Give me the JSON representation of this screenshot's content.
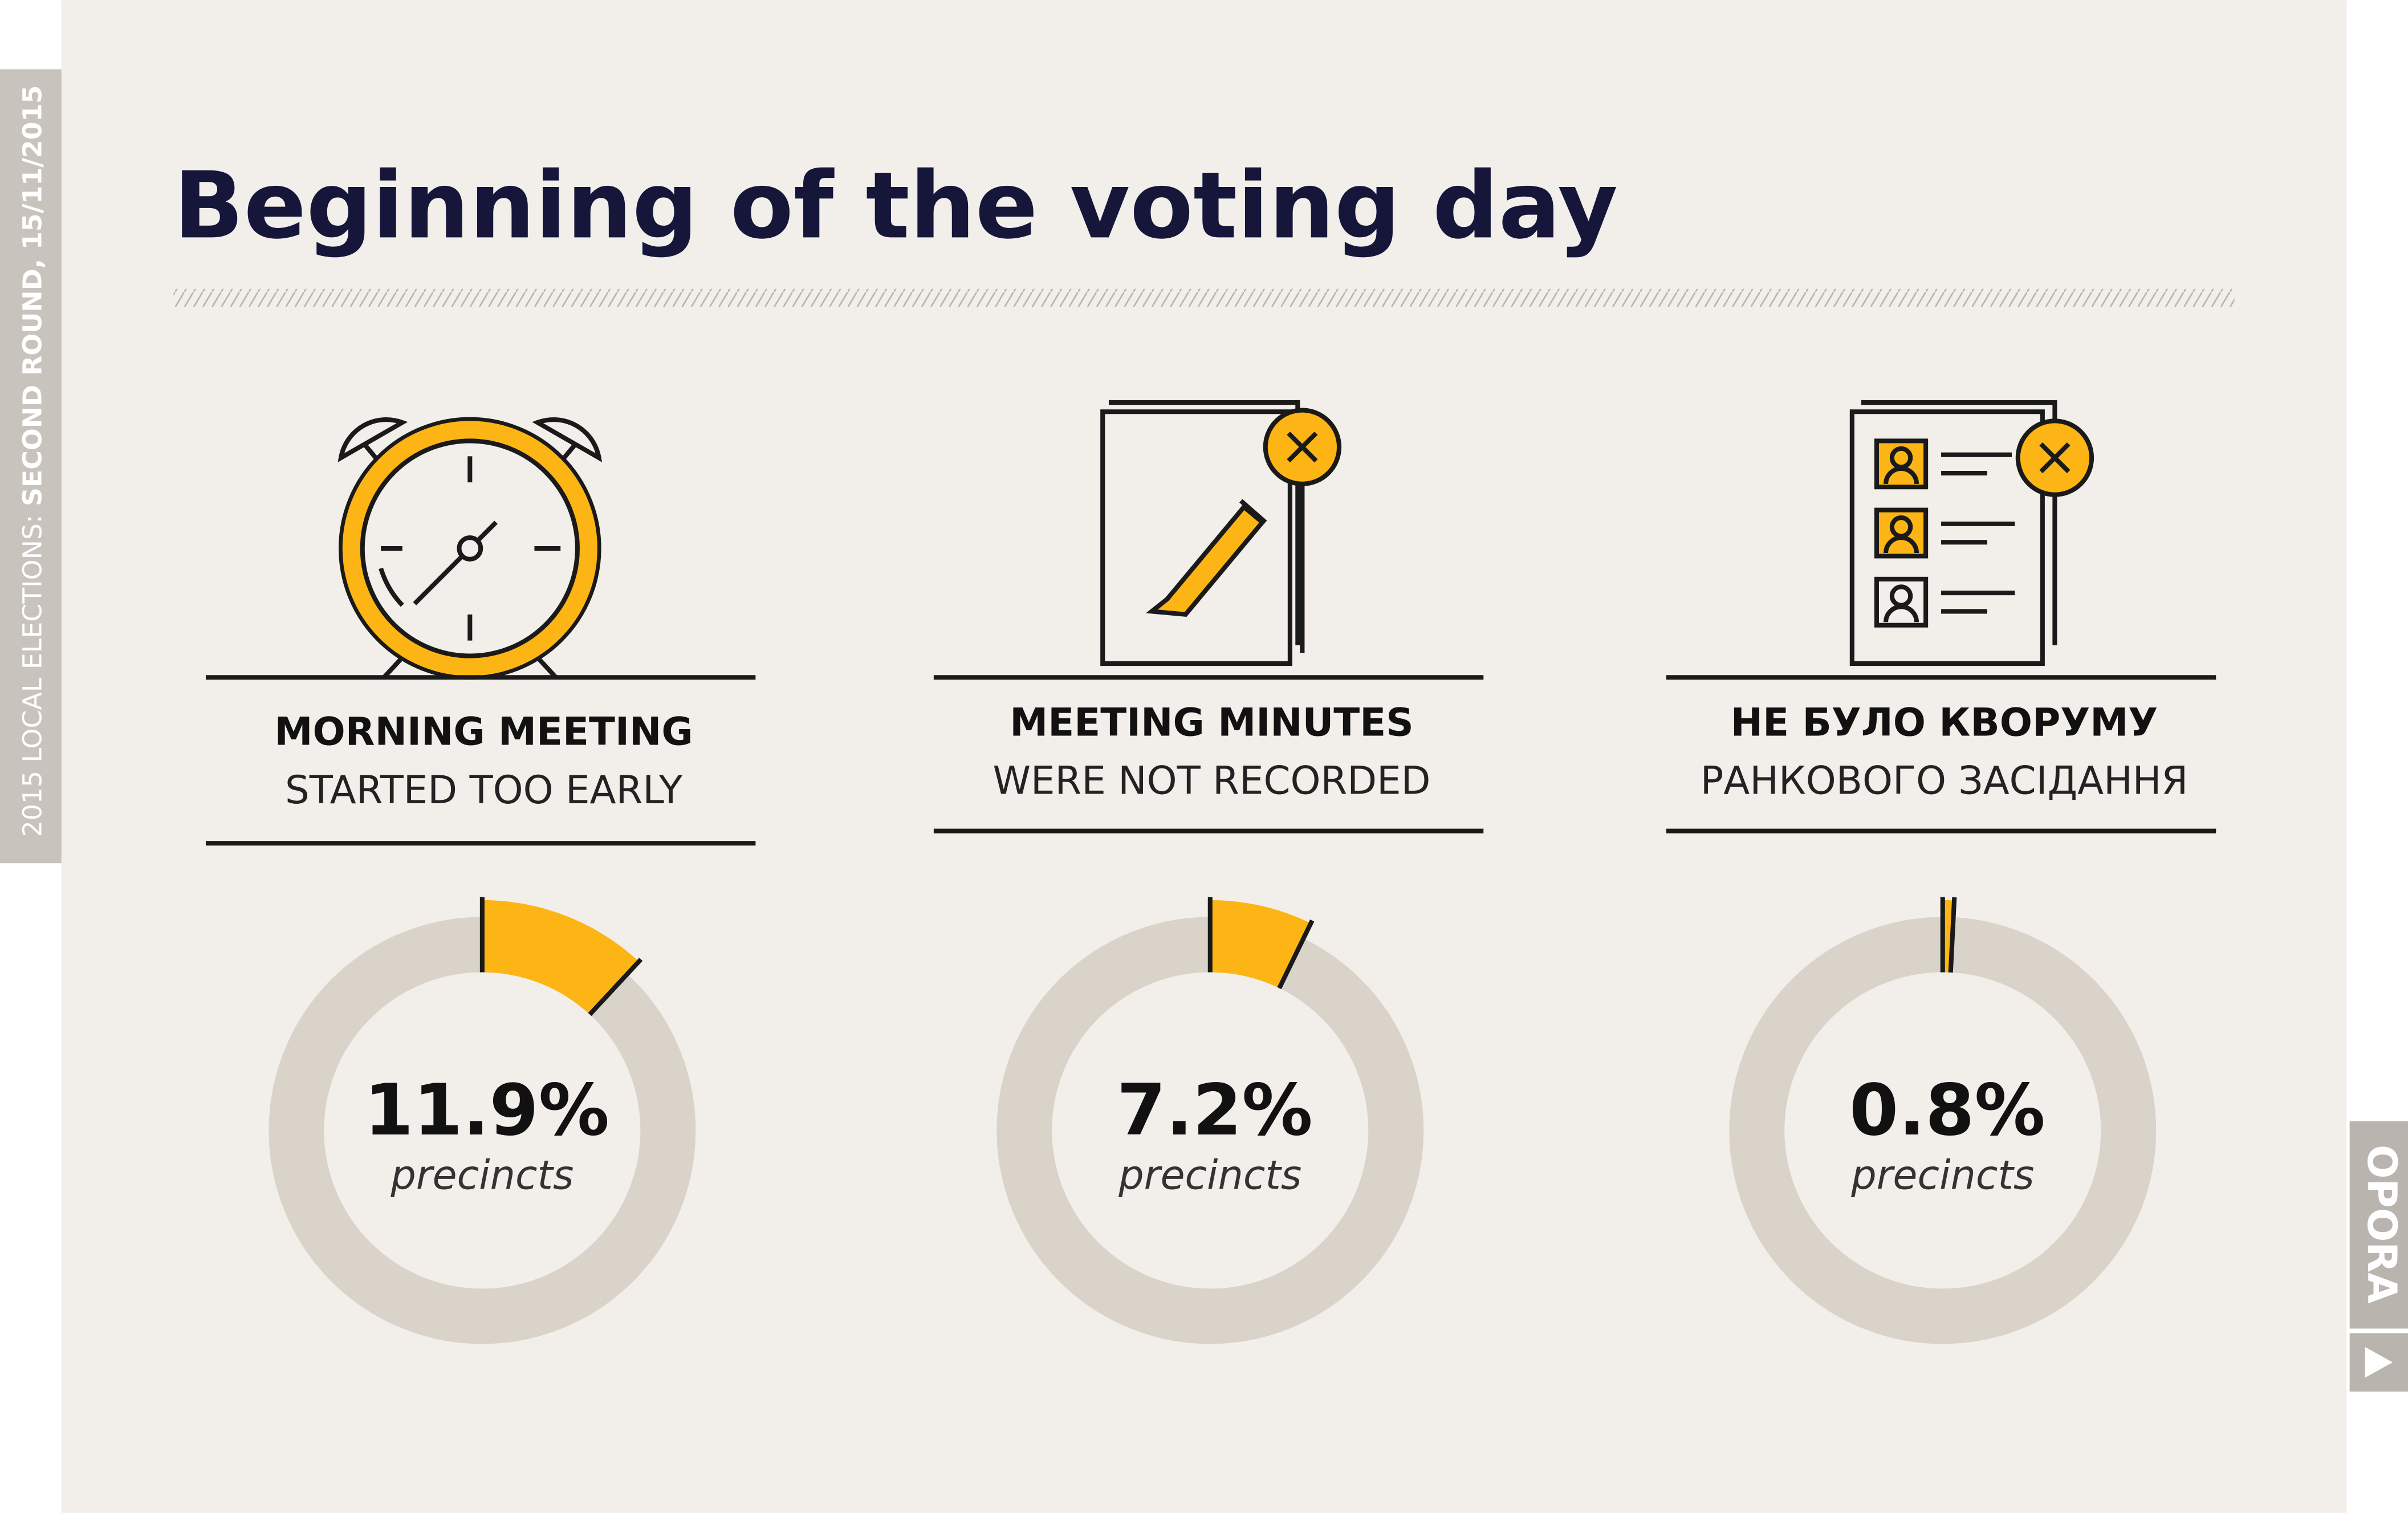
{
  "header": {
    "title": "Beginning of the voting day",
    "side_label_light": "2015 LOCAL ELECTIONS: ",
    "side_label_bold": "SECOND ROUND, 15/11/2015"
  },
  "brand": "OPORA",
  "chart_data": [
    {
      "type": "donut",
      "title": "MORNING MEETING",
      "subtitle": "STARTED TOO EARLY",
      "values": [
        11.9
      ],
      "value_labels": [
        "11.9%"
      ],
      "unit_label": "precincts",
      "color": "#fdb515",
      "track_color": "#d9d3ca"
    },
    {
      "type": "donut",
      "title": "MEETING MINUTES",
      "subtitle": "WERE NOT RECORDED",
      "values": [
        7.2
      ],
      "value_labels": [
        "7.2%"
      ],
      "unit_label": "precincts",
      "color": "#fdb515",
      "track_color": "#d9d3ca"
    },
    {
      "type": "donut",
      "title": "НЕ БУЛО КВОРУМУ",
      "subtitle": "РАНКОВОГО ЗАСІДАННЯ",
      "values": [
        0.8
      ],
      "value_labels": [
        "0.8%"
      ],
      "unit_label": "precincts",
      "color": "#fdb515",
      "track_color": "#d9d3ca"
    }
  ]
}
